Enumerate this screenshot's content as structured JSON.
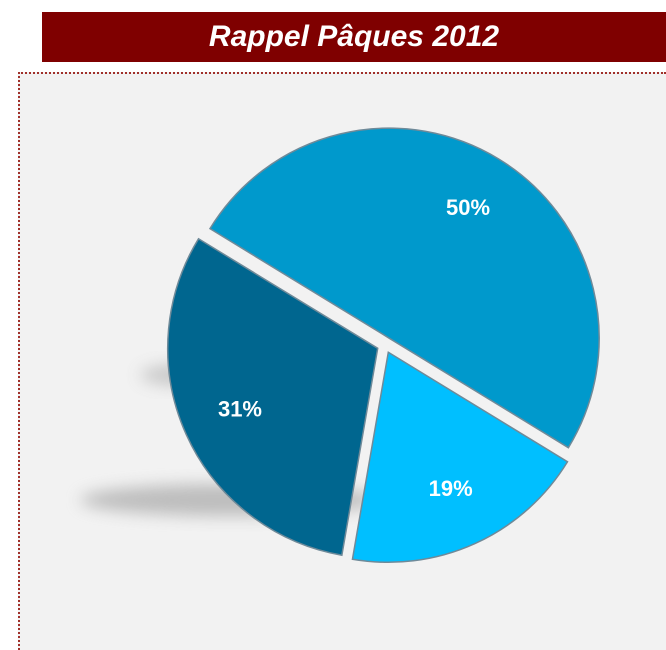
{
  "chart_data": {
    "type": "pie",
    "title": "Rappel Pâques 2012",
    "values": [
      50,
      19,
      31
    ],
    "value_labels": [
      "50%",
      "19%",
      "31%"
    ],
    "colors": [
      "#0099cc",
      "#00bfff",
      "#00668f"
    ]
  }
}
